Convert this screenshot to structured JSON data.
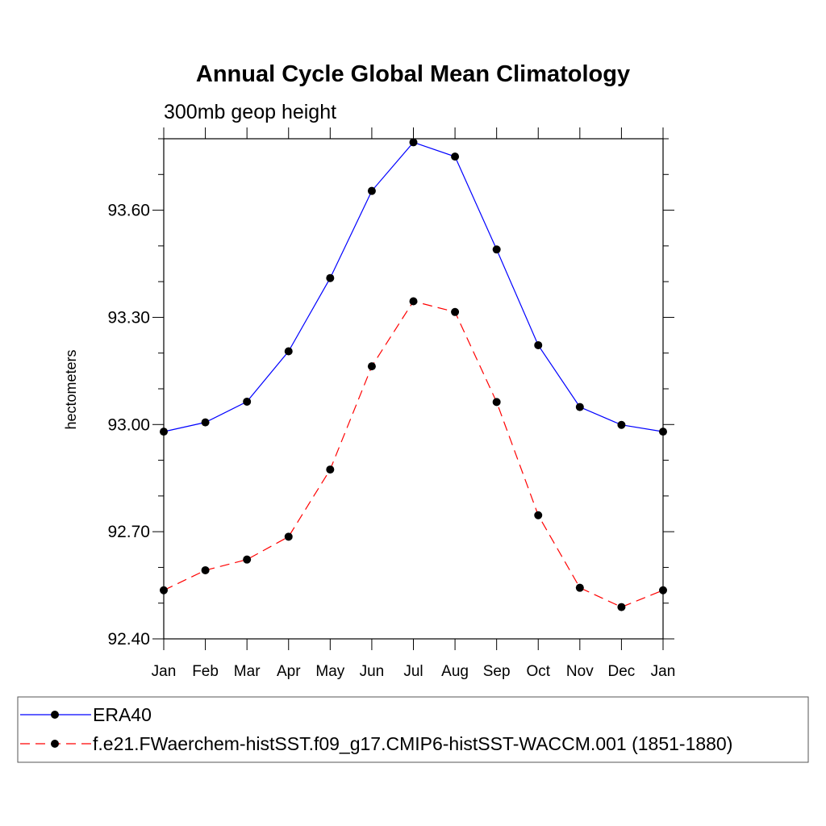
{
  "chart_data": {
    "type": "line",
    "title": "Annual Cycle Global Mean Climatology",
    "subtitle": "300mb geop height",
    "ylabel": "hectometers",
    "xlabel": "",
    "categories": [
      "Jan",
      "Feb",
      "Mar",
      "Apr",
      "May",
      "Jun",
      "Jul",
      "Aug",
      "Sep",
      "Oct",
      "Nov",
      "Dec",
      "Jan"
    ],
    "ylim": [
      92.4,
      93.8
    ],
    "yticks": [
      92.4,
      92.7,
      93.0,
      93.3,
      93.6
    ],
    "ytick_labels": [
      "92.40",
      "92.70",
      "93.00",
      "93.30",
      "93.60"
    ],
    "grid": false,
    "legend_position": "bottom",
    "series": [
      {
        "name": "ERA40",
        "color": "#0000ff",
        "dash": "solid",
        "marker": "filled-circle",
        "values": [
          92.98,
          93.006,
          93.064,
          93.205,
          93.41,
          93.654,
          93.79,
          93.75,
          93.49,
          93.222,
          93.049,
          92.999,
          92.98
        ]
      },
      {
        "name": "f.e21.FWaerchem-histSST.f09_g17.CMIP6-histSST-WACCM.001 (1851-1880)",
        "color": "#ff0000",
        "dash": "dashed",
        "marker": "filled-circle",
        "values": [
          92.536,
          92.592,
          92.622,
          92.686,
          92.874,
          93.163,
          93.345,
          93.315,
          93.063,
          92.746,
          92.543,
          92.489,
          92.536
        ]
      }
    ]
  }
}
